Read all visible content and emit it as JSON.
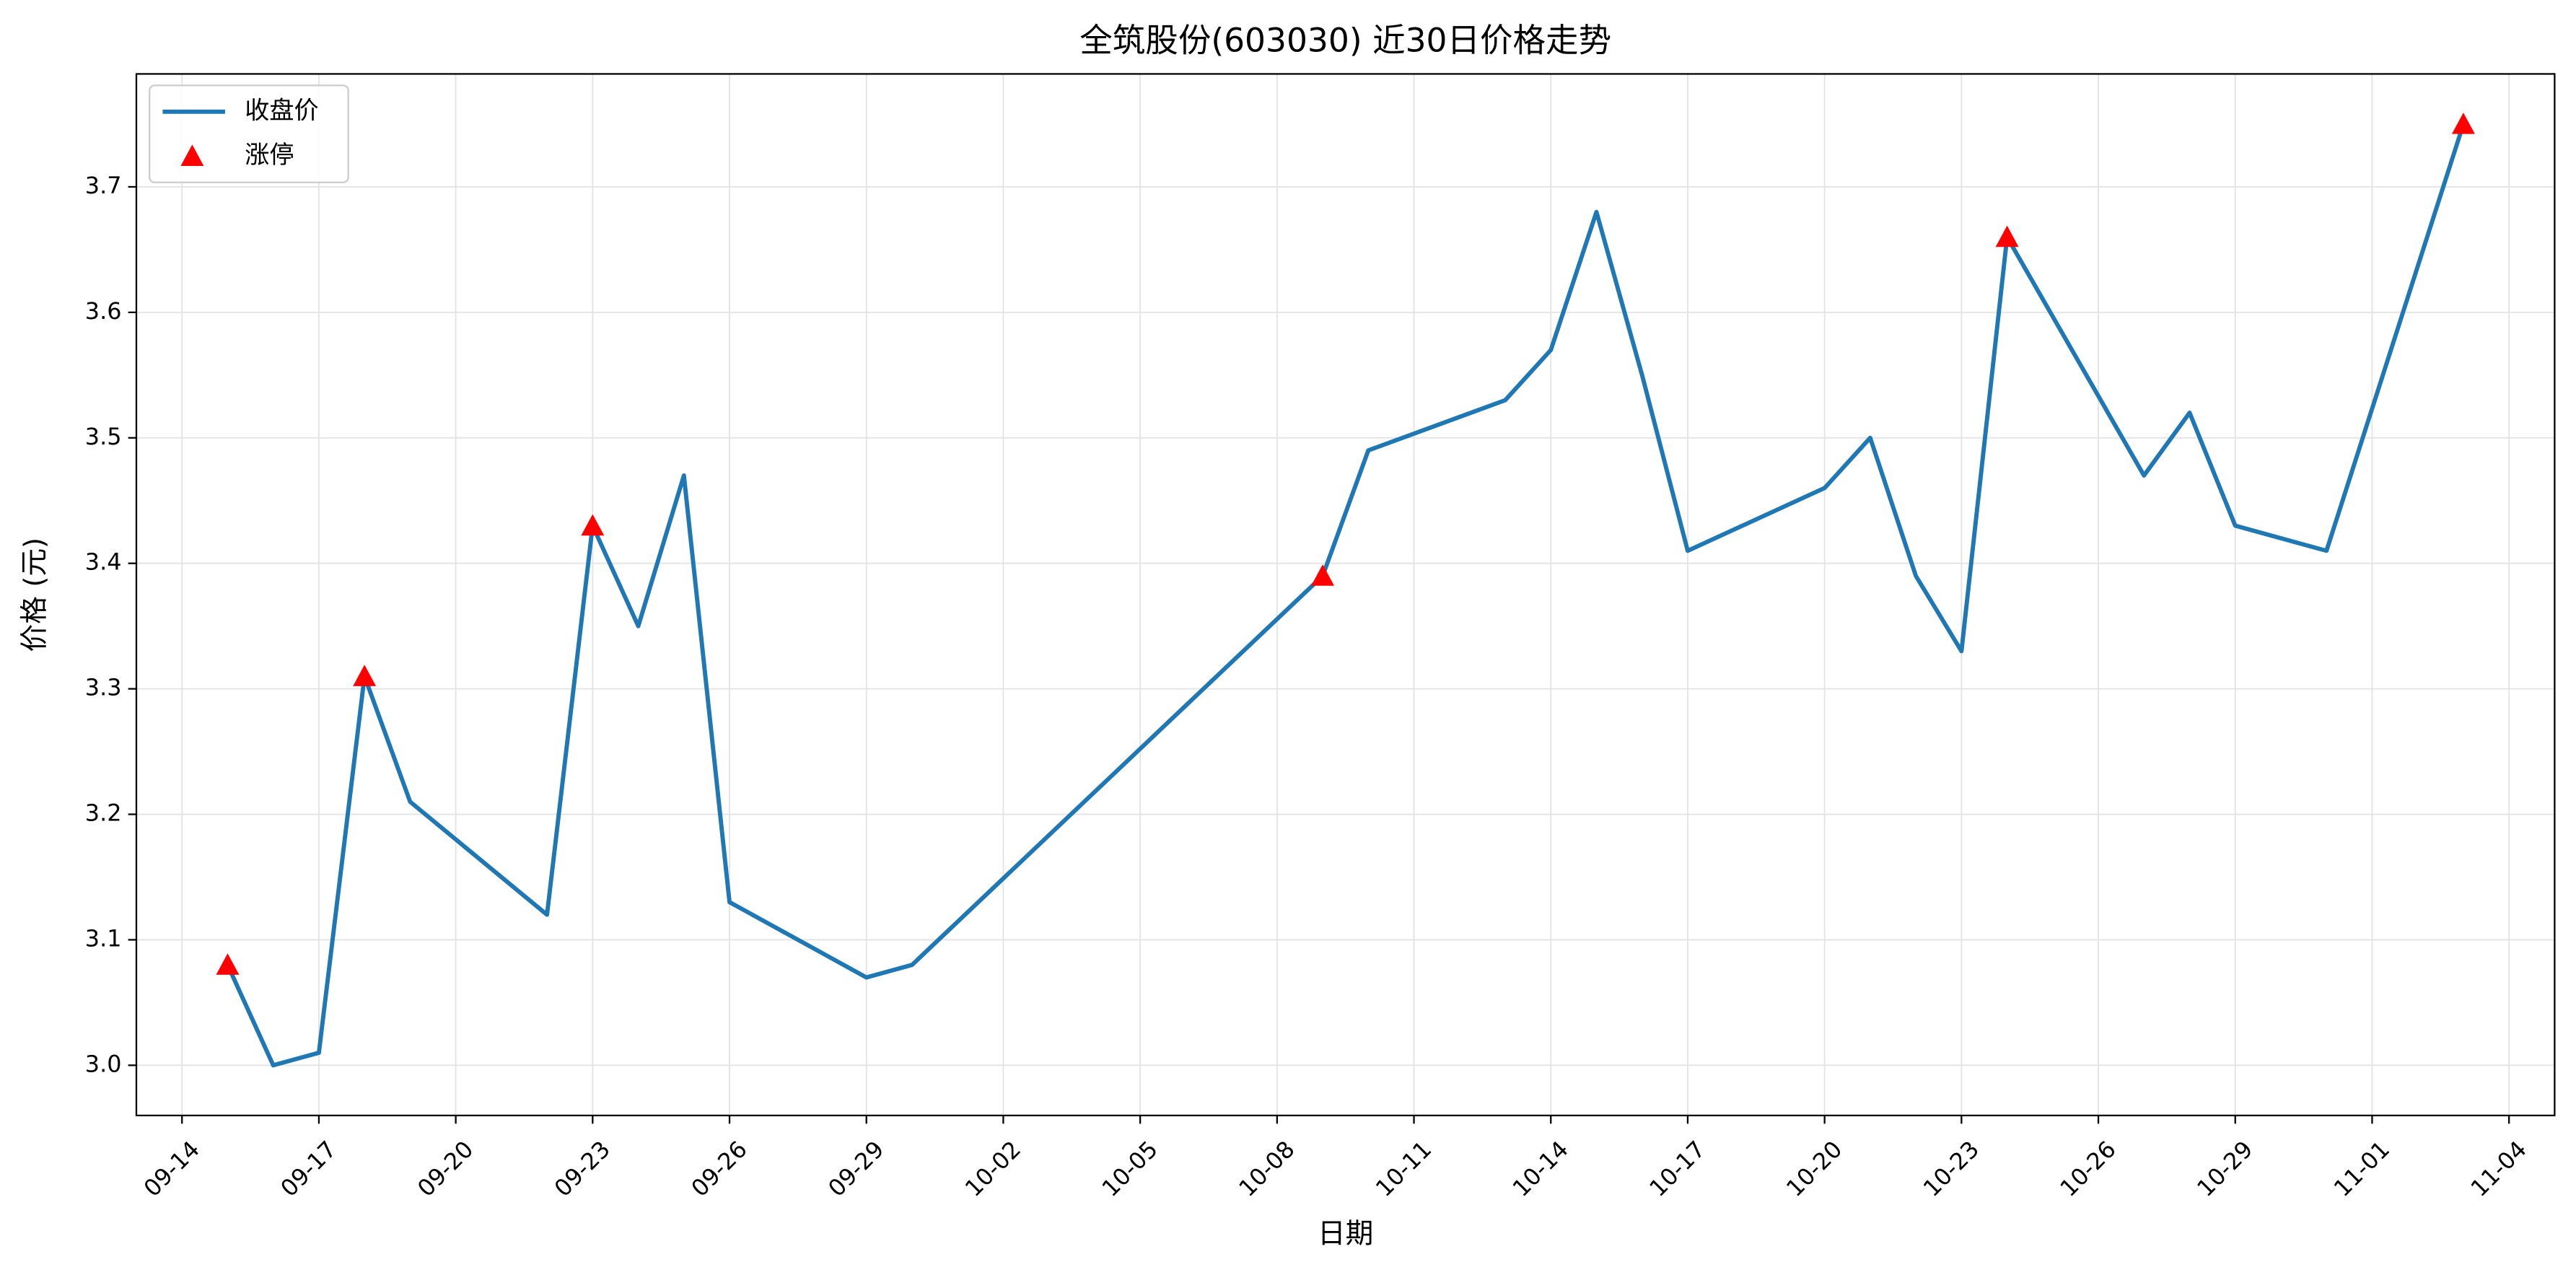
{
  "chart_data": {
    "type": "line",
    "title": "全筑股份(603030) 近30日价格走势",
    "x_label": "日期",
    "y_label": "价格 (元)",
    "x": [
      "09-15",
      "09-16",
      "09-17",
      "09-18",
      "09-19",
      "09-22",
      "09-23",
      "09-24",
      "09-25",
      "09-26",
      "09-29",
      "09-30",
      "10-09",
      "10-10",
      "10-13",
      "10-14",
      "10-15",
      "10-16",
      "10-17",
      "10-20",
      "10-21",
      "10-22",
      "10-23",
      "10-24",
      "10-27",
      "10-28",
      "10-29",
      "10-31",
      "11-03"
    ],
    "series": [
      {
        "name": "收盘价",
        "type": "line",
        "color": "#1f77b4",
        "values": [
          3.08,
          3.0,
          3.01,
          3.31,
          3.21,
          3.12,
          3.43,
          3.35,
          3.47,
          3.13,
          3.07,
          3.08,
          3.39,
          3.49,
          3.53,
          3.57,
          3.68,
          3.55,
          3.41,
          3.46,
          3.5,
          3.39,
          3.33,
          3.66,
          3.47,
          3.52,
          3.43,
          3.41,
          3.75
        ]
      },
      {
        "name": "涨停",
        "type": "scatter",
        "color": "#ff0000",
        "x": [
          "09-15",
          "09-18",
          "09-23",
          "10-09",
          "10-24",
          "11-03"
        ],
        "values": [
          3.08,
          3.31,
          3.43,
          3.39,
          3.66,
          3.75
        ]
      }
    ],
    "xlim": [
      "09-13",
      "11-05"
    ],
    "xticks": [
      "09-14",
      "09-17",
      "09-20",
      "09-23",
      "09-26",
      "09-29",
      "10-02",
      "10-05",
      "10-08",
      "10-11",
      "10-14",
      "10-17",
      "10-20",
      "10-23",
      "10-26",
      "10-29",
      "11-01",
      "11-04"
    ],
    "ylim": [
      2.96,
      3.79
    ],
    "yticks": [
      {
        "value": 3,
        "label": "3.0"
      },
      3.1,
      3.2,
      3.3,
      3.4,
      3.5,
      3.6,
      3.7
    ],
    "grid": true,
    "legend": "upper-left"
  }
}
